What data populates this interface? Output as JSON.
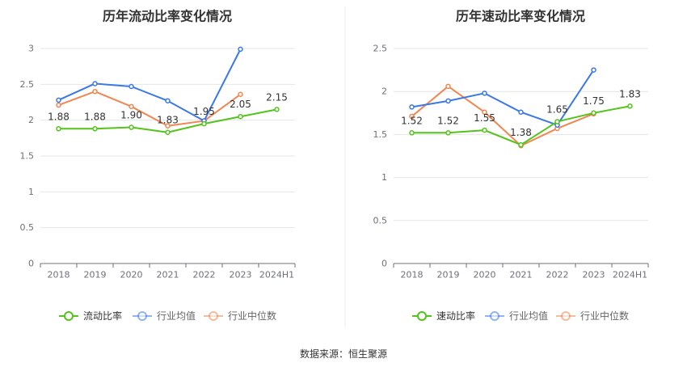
{
  "source_label": "数据来源：恒生聚源",
  "chart_data": [
    {
      "type": "line",
      "title": "历年流动比率变化情况",
      "categories": [
        "2018",
        "2019",
        "2020",
        "2021",
        "2022",
        "2023",
        "2024H1"
      ],
      "ylim": [
        0,
        3
      ],
      "yticks": [
        "0",
        "0.5",
        "1",
        "1.5",
        "2",
        "2.5",
        "3"
      ],
      "grid": true,
      "legend_position": "bottom",
      "series": [
        {
          "name": "流动比率",
          "color": "#52c41a",
          "values": [
            1.88,
            1.88,
            1.9,
            1.83,
            1.95,
            2.05,
            2.15
          ],
          "labels": [
            "1.88",
            "1.88",
            "1.90",
            "1.83",
            "1.95",
            "2.05",
            "2.15"
          ]
        },
        {
          "name": "行业均值",
          "color": "#3b78e7",
          "values": [
            2.28,
            2.51,
            2.47,
            2.27,
            1.99,
            2.99,
            null
          ]
        },
        {
          "name": "行业中位数",
          "color": "#f08650",
          "values": [
            2.21,
            2.4,
            2.19,
            1.92,
            1.99,
            2.36,
            null
          ]
        }
      ]
    },
    {
      "type": "line",
      "title": "历年速动比率变化情况",
      "categories": [
        "2018",
        "2019",
        "2020",
        "2021",
        "2022",
        "2023",
        "2024H1"
      ],
      "ylim": [
        0,
        2.5
      ],
      "yticks": [
        "0",
        "0.5",
        "1",
        "1.5",
        "2",
        "2.5"
      ],
      "grid": true,
      "legend_position": "bottom",
      "series": [
        {
          "name": "速动比率",
          "color": "#52c41a",
          "values": [
            1.52,
            1.52,
            1.55,
            1.38,
            1.65,
            1.75,
            1.83
          ],
          "labels": [
            "1.52",
            "1.52",
            "1.55",
            "1.38",
            "1.65",
            "1.75",
            "1.83"
          ]
        },
        {
          "name": "行业均值",
          "color": "#3b78e7",
          "values": [
            1.82,
            1.89,
            1.98,
            1.76,
            1.61,
            2.25,
            null
          ]
        },
        {
          "name": "行业中位数",
          "color": "#f08650",
          "values": [
            1.71,
            2.06,
            1.76,
            1.37,
            1.57,
            1.74,
            null
          ]
        }
      ]
    }
  ]
}
